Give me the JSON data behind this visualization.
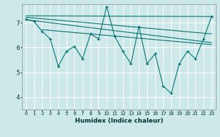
{
  "xlabel": "Humidex (Indice chaleur)",
  "bg_color": "#cce8e8",
  "grid_color": "#ffffff",
  "line_color": "#007070",
  "xlim": [
    -0.5,
    23.5
  ],
  "ylim": [
    3.5,
    7.75
  ],
  "yticks": [
    4,
    5,
    6,
    7
  ],
  "xticks": [
    0,
    1,
    2,
    3,
    4,
    5,
    6,
    7,
    8,
    9,
    10,
    11,
    12,
    13,
    14,
    15,
    16,
    17,
    18,
    19,
    20,
    21,
    22,
    23
  ],
  "main_x": [
    0,
    1,
    2,
    3,
    4,
    5,
    6,
    7,
    8,
    9,
    10,
    11,
    12,
    13,
    14,
    15,
    16,
    17,
    18,
    19,
    20,
    21,
    22,
    23
  ],
  "main_y": [
    7.15,
    7.05,
    6.65,
    6.35,
    5.25,
    5.85,
    6.05,
    5.55,
    6.55,
    6.35,
    7.65,
    6.45,
    5.85,
    5.35,
    6.85,
    5.35,
    5.75,
    4.45,
    4.15,
    5.35,
    5.85,
    5.55,
    6.35,
    7.25
  ],
  "trend1_x": [
    0,
    23
  ],
  "trend1_y": [
    7.28,
    7.25
  ],
  "trend2_x": [
    0,
    23
  ],
  "trend2_y": [
    7.22,
    6.55
  ],
  "trend3_x": [
    0,
    23
  ],
  "trend3_y": [
    7.12,
    6.2
  ],
  "trend4_x": [
    2,
    23
  ],
  "trend4_y": [
    6.72,
    6.12
  ]
}
